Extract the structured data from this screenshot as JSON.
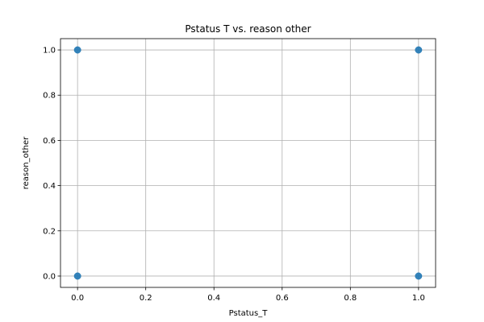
{
  "chart_data": {
    "type": "scatter",
    "title": "Pstatus T vs. reason other",
    "xlabel": "Pstatus_T",
    "ylabel": "reason_other",
    "xlim": [
      -0.05,
      1.05
    ],
    "ylim": [
      -0.05,
      1.05
    ],
    "grid": true,
    "xticks": [
      0.0,
      0.2,
      0.4,
      0.6,
      0.8,
      1.0
    ],
    "yticks": [
      0.0,
      0.2,
      0.4,
      0.6,
      0.8,
      1.0
    ],
    "xtick_labels": [
      "0.0",
      "0.2",
      "0.4",
      "0.6",
      "0.8",
      "1.0"
    ],
    "ytick_labels": [
      "0.0",
      "0.2",
      "0.4",
      "0.6",
      "0.8",
      "1.0"
    ],
    "series": [
      {
        "name": "points",
        "color": "#1f77b4",
        "points": [
          {
            "x": 0,
            "y": 0
          },
          {
            "x": 0,
            "y": 1
          },
          {
            "x": 1,
            "y": 0
          },
          {
            "x": 1,
            "y": 1
          }
        ]
      }
    ],
    "grid_color": "#b0b0b0",
    "axis_color": "#000000"
  }
}
